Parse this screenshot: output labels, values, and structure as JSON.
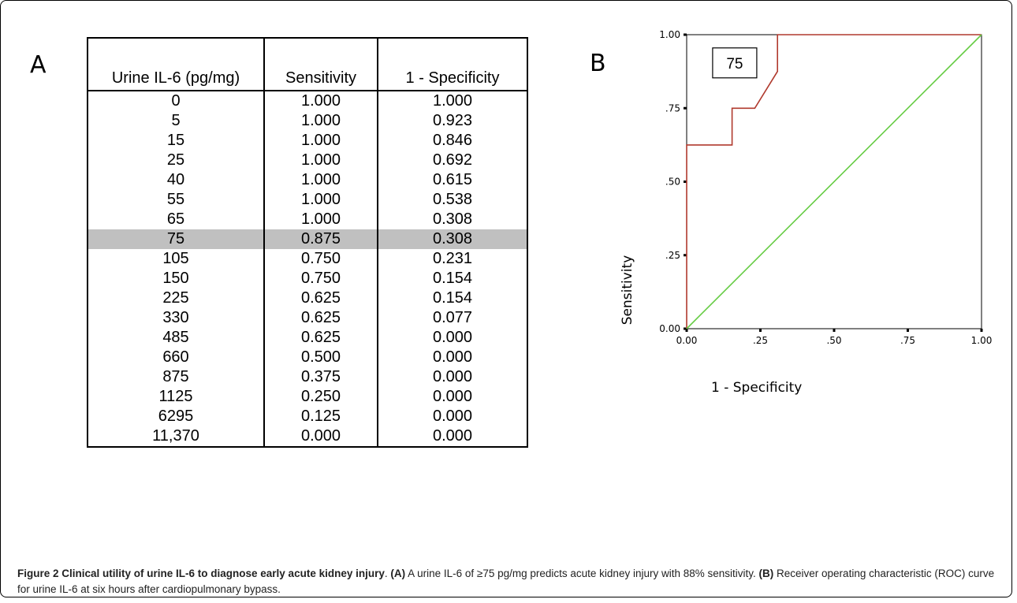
{
  "panel_a_label": "A",
  "panel_b_label": "B",
  "table": {
    "headers": [
      "Urine IL-6 (pg/mg)",
      "Sensitivity",
      "1 - Specificity"
    ],
    "rows": [
      [
        "0",
        "1.000",
        "1.000"
      ],
      [
        "5",
        "1.000",
        "0.923"
      ],
      [
        "15",
        "1.000",
        "0.846"
      ],
      [
        "25",
        "1.000",
        "0.692"
      ],
      [
        "40",
        "1.000",
        "0.615"
      ],
      [
        "55",
        "1.000",
        "0.538"
      ],
      [
        "65",
        "1.000",
        "0.308"
      ],
      [
        "75",
        "0.875",
        "0.308"
      ],
      [
        "105",
        "0.750",
        "0.231"
      ],
      [
        "150",
        "0.750",
        "0.154"
      ],
      [
        "225",
        "0.625",
        "0.154"
      ],
      [
        "330",
        "0.625",
        "0.077"
      ],
      [
        "485",
        "0.625",
        "0.000"
      ],
      [
        "660",
        "0.500",
        "0.000"
      ],
      [
        "875",
        "0.375",
        "0.000"
      ],
      [
        "1125",
        "0.250",
        "0.000"
      ],
      [
        "6295",
        "0.125",
        "0.000"
      ],
      [
        "11,370",
        "0.000",
        "0.000"
      ]
    ],
    "highlighted_row_value": "75",
    "highlight_color": "#c0c0c0"
  },
  "chart_data": {
    "type": "line",
    "title": "",
    "xlabel": "1 - Specificity",
    "ylabel": "Sensitivity",
    "xlim": [
      0,
      1
    ],
    "ylim": [
      0,
      1
    ],
    "x_ticks": [
      0,
      0.25,
      0.5,
      0.75,
      1
    ],
    "x_tick_labels": [
      "0.00",
      ".25",
      ".50",
      ".75",
      "1.00"
    ],
    "y_ticks": [
      0,
      0.25,
      0.5,
      0.75,
      1
    ],
    "y_tick_labels": [
      "0.00",
      ".25",
      ".50",
      ".75",
      "1.00"
    ],
    "grid": false,
    "legend": "none",
    "annotation": "75",
    "series": [
      {
        "color": "#b03a2e",
        "x": [
          0,
          0,
          0.154,
          0.154,
          0.231,
          0.308,
          0.308,
          0.308,
          0.308,
          1.0
        ],
        "y": [
          0,
          0.625,
          0.625,
          0.75,
          0.75,
          0.875,
          0.875,
          1.0,
          1.0,
          1.0
        ]
      },
      {
        "color": "#66cc44",
        "x": [
          0,
          1
        ],
        "y": [
          0,
          1
        ]
      }
    ]
  },
  "caption": {
    "figure_label": "Figure 2 Clinical utility of urine IL-6 to diagnose early acute kidney injury",
    "after_label": ". ",
    "part_a_label": "(A)",
    "part_a_text": " A urine IL-6 of ≥75 pg/mg predicts acute kidney injury with 88% sensitivity. ",
    "part_b_label": "(B)",
    "part_b_text": " Receiver operating characteristic (ROC) curve for urine IL-6 at six hours after cardiopulmonary bypass."
  }
}
